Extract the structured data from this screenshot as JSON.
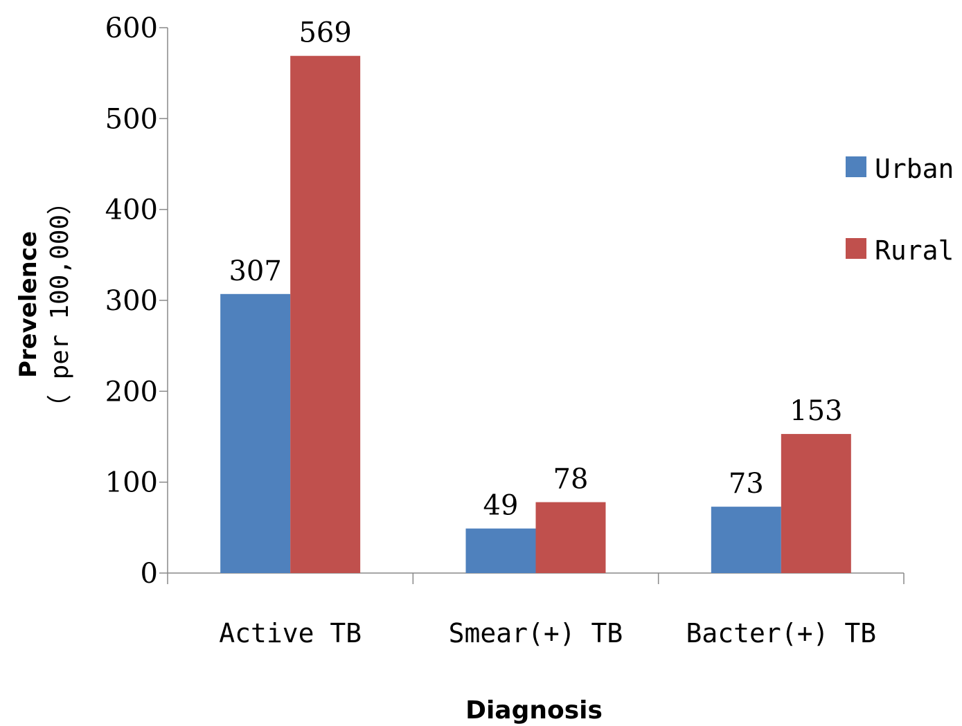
{
  "chart_data": {
    "type": "bar",
    "categories": [
      "Active TB",
      "Smear(+) TB",
      "Bacter(+) TB"
    ],
    "series": [
      {
        "name": "Urban",
        "color": "#4F81BD",
        "values": [
          307,
          49,
          73
        ]
      },
      {
        "name": "Rural",
        "color": "#C0504D",
        "values": [
          569,
          78,
          153
        ]
      }
    ],
    "xlabel": "Diagnosis",
    "ylabel": "Prevelence",
    "ylabel_unit": "（ per 100,000）",
    "ylim": [
      0,
      600
    ],
    "yticks": [
      0,
      100,
      200,
      300,
      400,
      500,
      600
    ],
    "grid": false,
    "legend_position": "right",
    "data_labels": true
  }
}
